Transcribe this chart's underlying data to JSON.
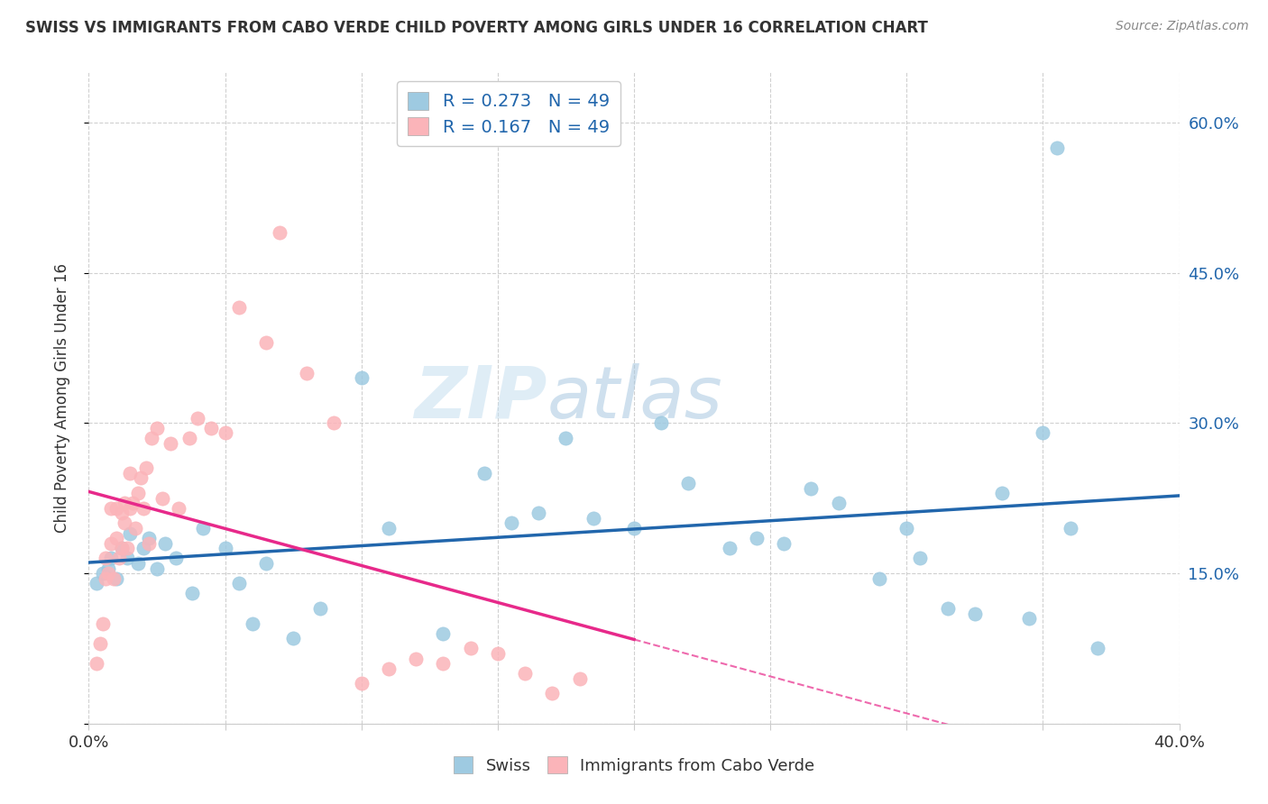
{
  "title": "SWISS VS IMMIGRANTS FROM CABO VERDE CHILD POVERTY AMONG GIRLS UNDER 16 CORRELATION CHART",
  "source": "Source: ZipAtlas.com",
  "ylabel": "Child Poverty Among Girls Under 16",
  "xlim": [
    0.0,
    0.4
  ],
  "ylim": [
    0.0,
    0.65
  ],
  "watermark_zip": "ZIP",
  "watermark_atlas": "atlas",
  "blue_color": "#9ecae1",
  "pink_color": "#fbb4b9",
  "blue_line_color": "#2166ac",
  "pink_line_color": "#e7298a",
  "pink_dash_color": "#e7298a",
  "legend_r_swiss": "0.273",
  "legend_n_swiss": "49",
  "legend_r_cabo": "0.167",
  "legend_n_cabo": "49",
  "swiss_x": [
    0.003,
    0.005,
    0.007,
    0.008,
    0.01,
    0.012,
    0.014,
    0.015,
    0.018,
    0.02,
    0.022,
    0.025,
    0.028,
    0.032,
    0.038,
    0.042,
    0.05,
    0.055,
    0.06,
    0.065,
    0.075,
    0.085,
    0.1,
    0.11,
    0.13,
    0.145,
    0.155,
    0.165,
    0.175,
    0.185,
    0.2,
    0.21,
    0.22,
    0.235,
    0.245,
    0.255,
    0.265,
    0.275,
    0.29,
    0.3,
    0.305,
    0.315,
    0.325,
    0.335,
    0.345,
    0.35,
    0.355,
    0.36,
    0.37
  ],
  "swiss_y": [
    0.14,
    0.15,
    0.155,
    0.165,
    0.145,
    0.175,
    0.165,
    0.19,
    0.16,
    0.175,
    0.185,
    0.155,
    0.18,
    0.165,
    0.13,
    0.195,
    0.175,
    0.14,
    0.1,
    0.16,
    0.085,
    0.115,
    0.345,
    0.195,
    0.09,
    0.25,
    0.2,
    0.21,
    0.285,
    0.205,
    0.195,
    0.3,
    0.24,
    0.175,
    0.185,
    0.18,
    0.235,
    0.22,
    0.145,
    0.195,
    0.165,
    0.115,
    0.11,
    0.23,
    0.105,
    0.29,
    0.575,
    0.195,
    0.075
  ],
  "cabo_x": [
    0.003,
    0.004,
    0.005,
    0.006,
    0.006,
    0.007,
    0.008,
    0.008,
    0.009,
    0.01,
    0.01,
    0.011,
    0.012,
    0.012,
    0.013,
    0.013,
    0.014,
    0.015,
    0.015,
    0.016,
    0.017,
    0.018,
    0.019,
    0.02,
    0.021,
    0.022,
    0.023,
    0.025,
    0.027,
    0.03,
    0.033,
    0.037,
    0.04,
    0.045,
    0.05,
    0.055,
    0.065,
    0.07,
    0.08,
    0.09,
    0.1,
    0.11,
    0.12,
    0.13,
    0.14,
    0.15,
    0.16,
    0.17,
    0.18
  ],
  "cabo_y": [
    0.06,
    0.08,
    0.1,
    0.145,
    0.165,
    0.15,
    0.18,
    0.215,
    0.145,
    0.185,
    0.215,
    0.165,
    0.175,
    0.21,
    0.2,
    0.22,
    0.175,
    0.215,
    0.25,
    0.22,
    0.195,
    0.23,
    0.245,
    0.215,
    0.255,
    0.18,
    0.285,
    0.295,
    0.225,
    0.28,
    0.215,
    0.285,
    0.305,
    0.295,
    0.29,
    0.415,
    0.38,
    0.49,
    0.35,
    0.3,
    0.04,
    0.055,
    0.065,
    0.06,
    0.075,
    0.07,
    0.05,
    0.03,
    0.045
  ],
  "grid_color": "#d0d0d0",
  "bg_color": "#ffffff",
  "title_color": "#333333",
  "source_color": "#888888",
  "axis_label_color": "#333333",
  "right_tick_color": "#2166ac"
}
